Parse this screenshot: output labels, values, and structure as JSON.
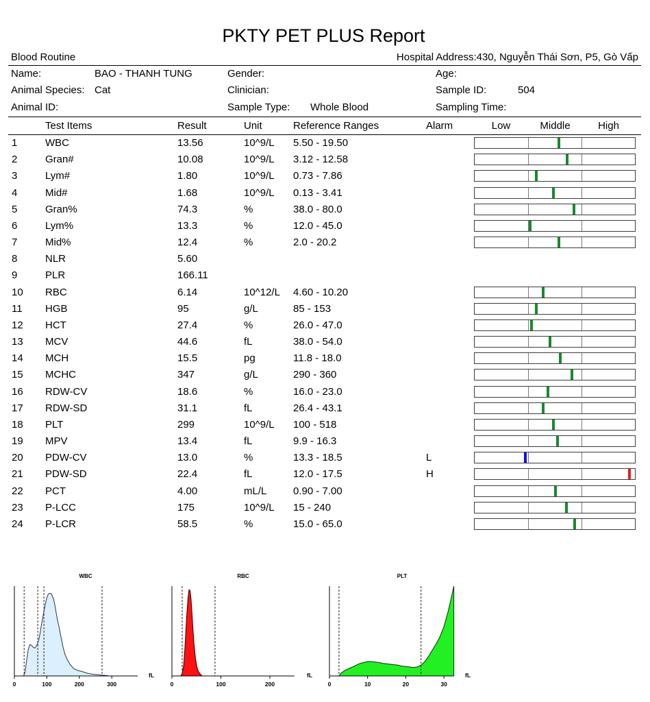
{
  "report": {
    "title": "PKTY PET PLUS Report",
    "section": "Blood Routine",
    "hospital_address": "Hospital Address:430, Nguyễn Thái Sơn, P5, Gò Vấp"
  },
  "patient": {
    "name_label": "Name:",
    "name": "BAO - THANH TUNG",
    "gender_label": "Gender:",
    "age_label": "Age:",
    "species_label": "Animal Species:",
    "species": "Cat",
    "clinician_label": "Clinician:",
    "sample_id_label": "Sample ID:",
    "sample_id": "504",
    "animal_id_label": "Animal ID:",
    "sample_type_label": "Sample Type:",
    "sample_type": "Whole Blood",
    "sampling_time_label": "Sampling Time:"
  },
  "table_headers": {
    "test_items": "Test Items",
    "result": "Result",
    "unit": "Unit",
    "reference": "Reference Ranges",
    "alarm": "Alarm",
    "low": "Low",
    "middle": "Middle",
    "high": "High"
  },
  "colors": {
    "marker_normal": "#178a2c",
    "marker_low": "#1010e8",
    "marker_high": "#ee1c24"
  },
  "tests": [
    {
      "no": 1,
      "item": "WBC",
      "result": "13.56",
      "unit": "10^9/L",
      "reference": "5.50 - 19.50"
    },
    {
      "no": 2,
      "item": "Gran#",
      "result": "10.08",
      "unit": "10^9/L",
      "reference": "3.12 - 12.58"
    },
    {
      "no": 3,
      "item": "Lym#",
      "result": "1.80",
      "unit": "10^9/L",
      "reference": "0.73 - 7.86"
    },
    {
      "no": 4,
      "item": "Mid#",
      "result": "1.68",
      "unit": "10^9/L",
      "reference": "0.13 - 3.41"
    },
    {
      "no": 5,
      "item": "Gran%",
      "result": "74.3",
      "unit": "%",
      "reference": "38.0 - 80.0"
    },
    {
      "no": 6,
      "item": "Lym%",
      "result": "13.3",
      "unit": "%",
      "reference": "12.0 - 45.0"
    },
    {
      "no": 7,
      "item": "Mid%",
      "result": "12.4",
      "unit": "%",
      "reference": "2.0 - 20.2"
    },
    {
      "no": 8,
      "item": "NLR",
      "result": "5.60"
    },
    {
      "no": 9,
      "item": "PLR",
      "result": "166.11"
    },
    {
      "no": 10,
      "item": "RBC",
      "result": "6.14",
      "unit": "10^12/L",
      "reference": "4.60 - 10.20"
    },
    {
      "no": 11,
      "item": "HGB",
      "result": "95",
      "unit": "g/L",
      "reference": "85 - 153"
    },
    {
      "no": 12,
      "item": "HCT",
      "result": "27.4",
      "unit": "%",
      "reference": "26.0 - 47.0"
    },
    {
      "no": 13,
      "item": "MCV",
      "result": "44.6",
      "unit": "fL",
      "reference": "38.0 - 54.0"
    },
    {
      "no": 14,
      "item": "MCH",
      "result": "15.5",
      "unit": "pg",
      "reference": "11.8 - 18.0"
    },
    {
      "no": 15,
      "item": "MCHC",
      "result": "347",
      "unit": "g/L",
      "reference": "290 - 360"
    },
    {
      "no": 16,
      "item": "RDW-CV",
      "result": "18.6",
      "unit": "%",
      "reference": "16.0 - 23.0"
    },
    {
      "no": 17,
      "item": "RDW-SD",
      "result": "31.1",
      "unit": "fL",
      "reference": "26.4 - 43.1"
    },
    {
      "no": 18,
      "item": "PLT",
      "result": "299",
      "unit": "10^9/L",
      "reference": "100 - 518"
    },
    {
      "no": 19,
      "item": "MPV",
      "result": "13.4",
      "unit": "fL",
      "reference": "9.9 - 16.3"
    },
    {
      "no": 20,
      "item": "PDW-CV",
      "result": "13.0",
      "unit": "%",
      "reference": "13.3 - 18.5",
      "alarm": "L"
    },
    {
      "no": 21,
      "item": "PDW-SD",
      "result": "22.4",
      "unit": "fL",
      "reference": "12.0 - 17.5",
      "alarm": "H"
    },
    {
      "no": 22,
      "item": "PCT",
      "result": "4.00",
      "unit": "mL/L",
      "reference": "0.90 - 7.00"
    },
    {
      "no": 23,
      "item": "P-LCC",
      "result": "175",
      "unit": "10^9/L",
      "reference": "15 - 240"
    },
    {
      "no": 24,
      "item": "P-LCR",
      "result": "58.5",
      "unit": "%",
      "reference": "15.0 - 65.0"
    }
  ],
  "chart_data": [
    {
      "type": "area",
      "title": "WBC",
      "xlabel": "fL",
      "x_ticks": [
        0,
        100,
        200,
        300
      ],
      "xlim": [
        0,
        380
      ],
      "discriminators": [
        30,
        72,
        91,
        270
      ],
      "fill": "#dcefff",
      "stroke": "#22364d",
      "x": [
        28,
        33,
        38,
        43,
        48,
        53,
        58,
        63,
        67,
        71,
        75,
        79,
        83,
        88,
        92,
        96,
        100,
        104,
        108,
        112,
        117,
        121,
        125,
        129,
        133,
        138,
        142,
        146,
        150,
        156,
        163,
        171,
        183,
        196,
        208,
        225,
        240,
        255,
        267,
        280,
        292
      ],
      "y": [
        0,
        4,
        18,
        30,
        35,
        34,
        32,
        31,
        33,
        36,
        40,
        47,
        56,
        66,
        74,
        81,
        87,
        91,
        92,
        92,
        89,
        85,
        78,
        70,
        62,
        54,
        46,
        39,
        32,
        24,
        18,
        13,
        8,
        6,
        5,
        3,
        2,
        1.5,
        1,
        0.5,
        0
      ]
    },
    {
      "type": "area",
      "title": "RBC",
      "xlabel": "fL",
      "x_ticks": [
        0,
        100,
        200
      ],
      "xlim": [
        0,
        250
      ],
      "discriminators": [
        21,
        88
      ],
      "fill": "#ff1212",
      "stroke": "#2a0000",
      "x": [
        18,
        21,
        24,
        27,
        30,
        33,
        35,
        37,
        39,
        41,
        43,
        45,
        48,
        51,
        54,
        58,
        62
      ],
      "y": [
        0,
        3,
        12,
        35,
        65,
        88,
        96,
        95,
        86,
        70,
        52,
        36,
        20,
        10,
        5,
        2,
        0
      ]
    },
    {
      "type": "area",
      "title": "PLT",
      "xlabel": "fL",
      "x_ticks": [
        0,
        10,
        20,
        30
      ],
      "xlim": [
        0,
        32.6
      ],
      "discriminators": [
        2.5,
        24
      ],
      "fill": "#22f022",
      "stroke": "#0a2a0a",
      "x": [
        2.5,
        3,
        4,
        5,
        6,
        7,
        8,
        9,
        10,
        11,
        12,
        13,
        14,
        15,
        16,
        17,
        18,
        19,
        20,
        21,
        22,
        23,
        24,
        25,
        26,
        27,
        28,
        29,
        30,
        31,
        32,
        32.6
      ],
      "y": [
        0,
        3,
        6,
        8,
        10,
        12,
        14,
        15,
        16,
        16,
        15.5,
        15,
        14,
        13.5,
        13,
        12.5,
        12,
        11,
        10.5,
        10,
        9.5,
        10,
        12,
        16,
        22,
        29,
        36,
        44,
        55,
        70,
        88,
        100
      ]
    }
  ]
}
